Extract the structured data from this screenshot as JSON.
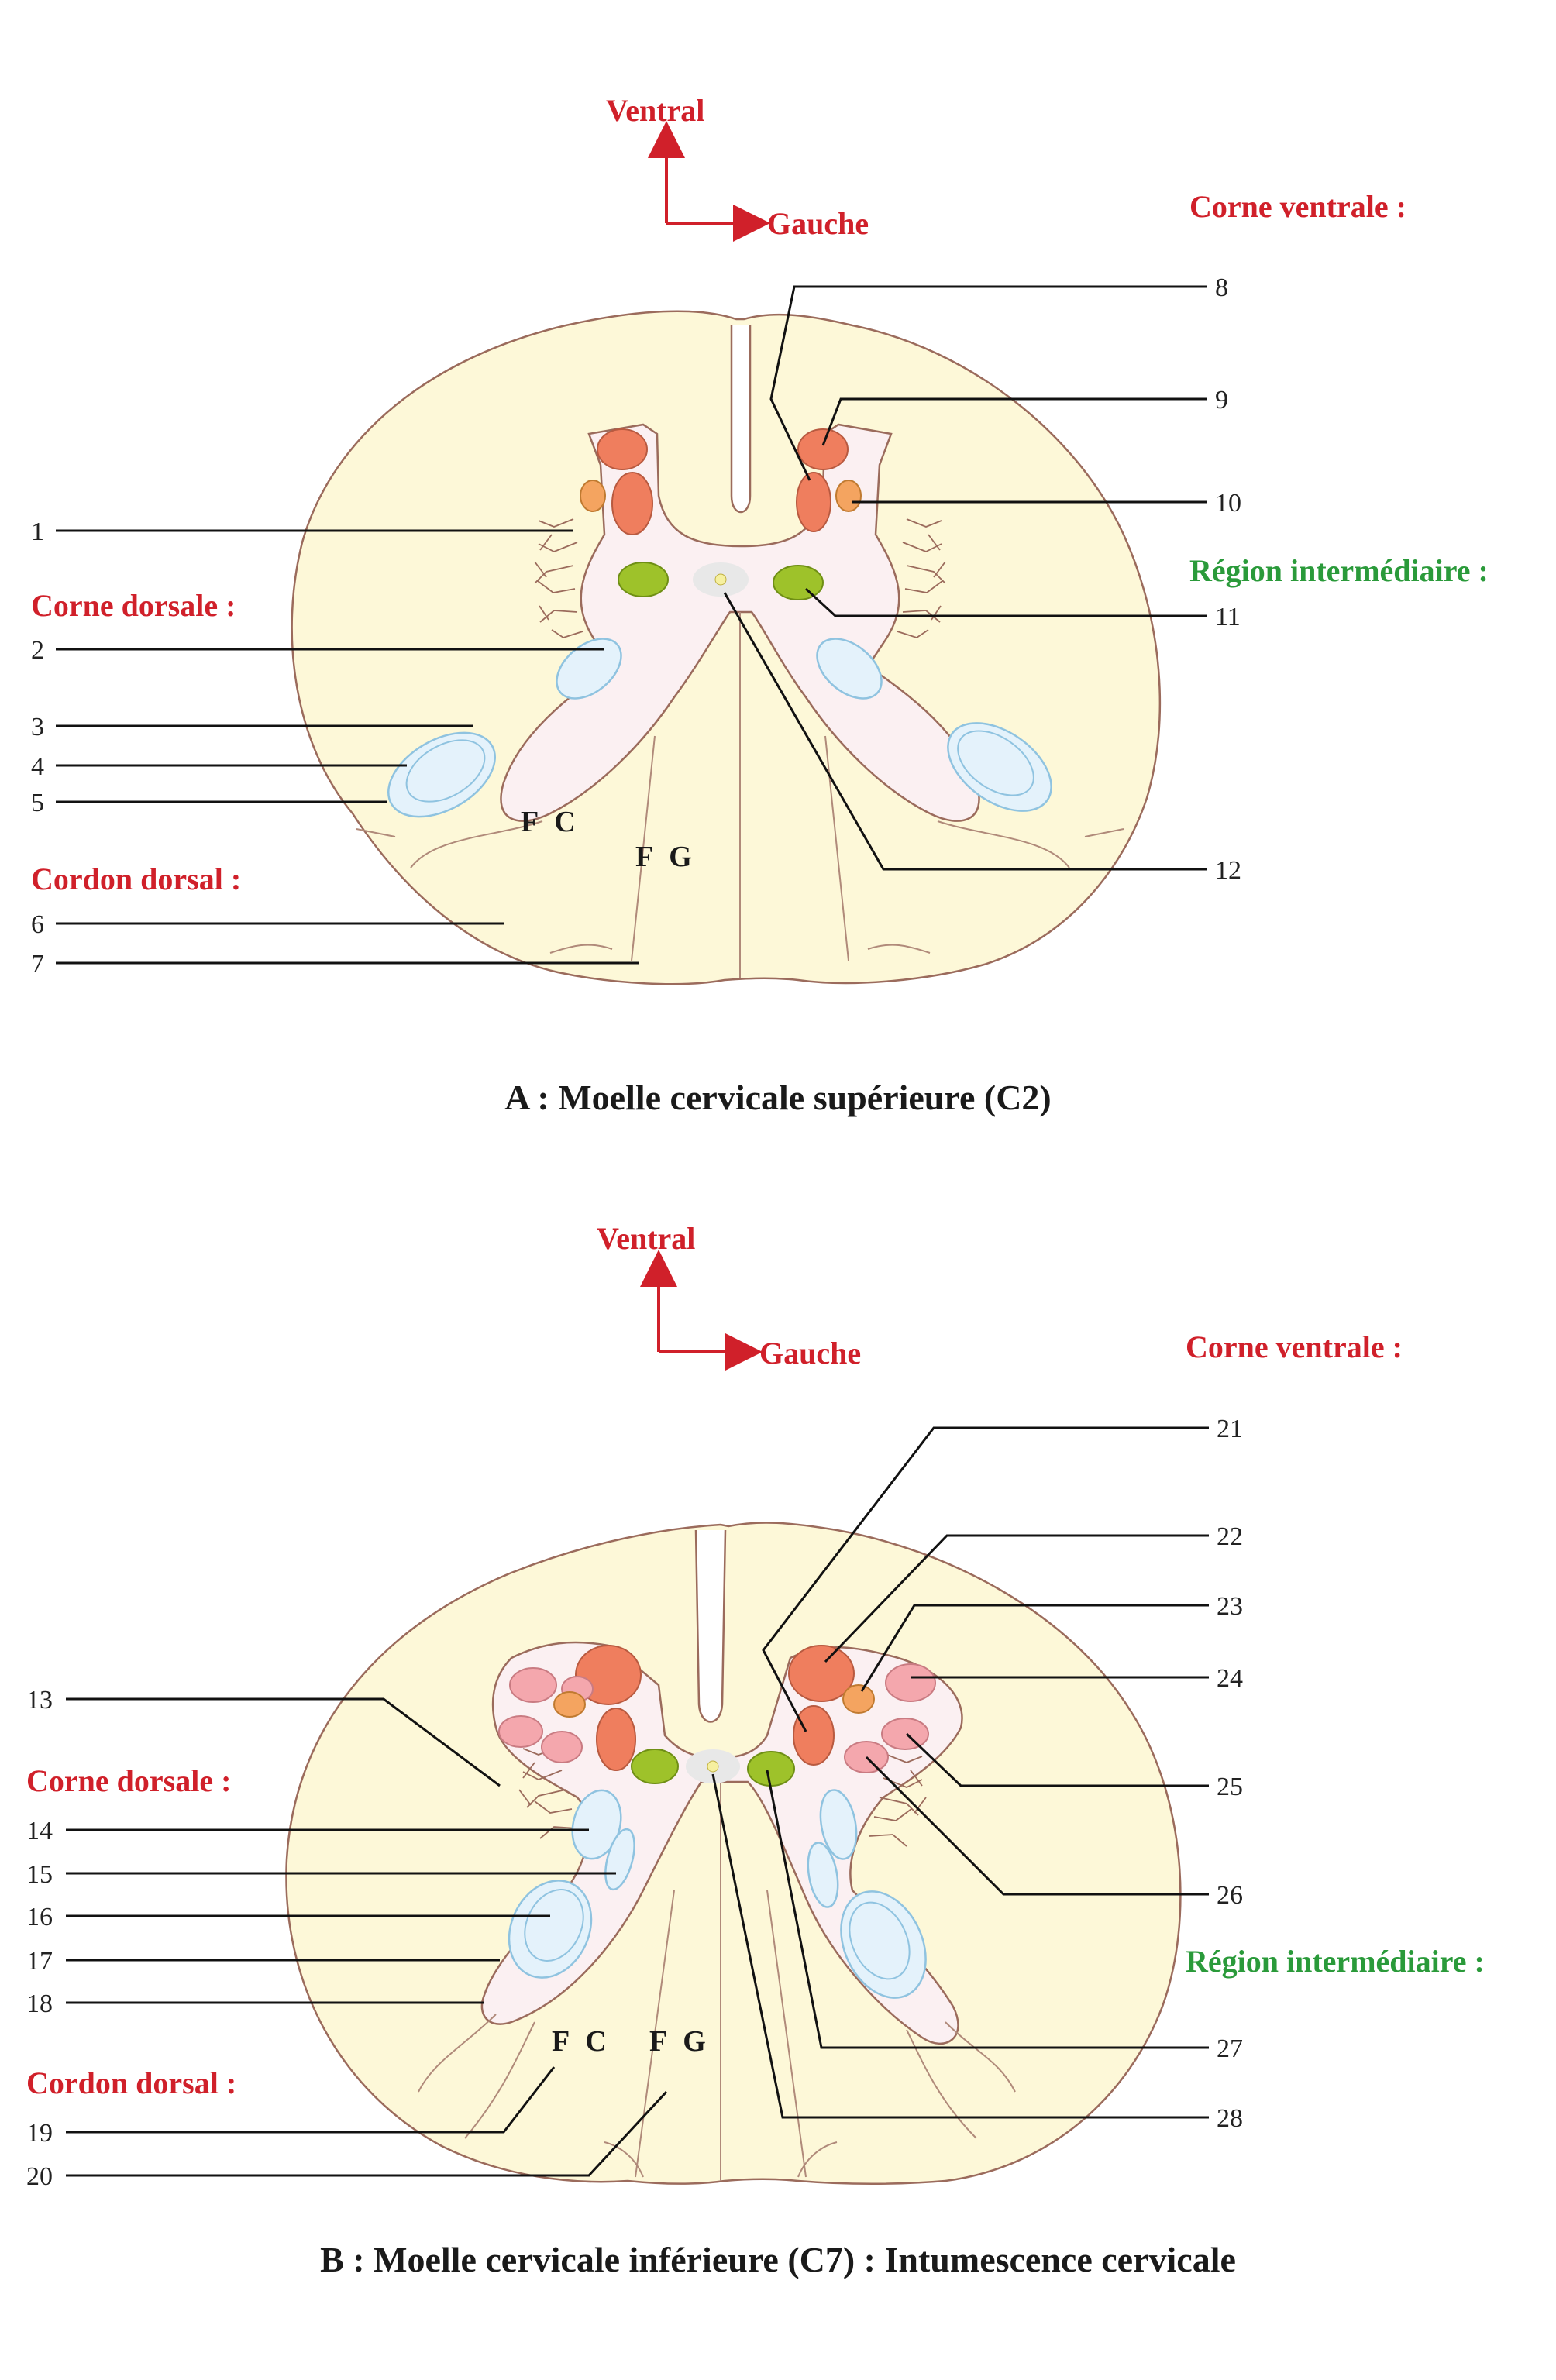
{
  "diagram_a": {
    "direction_ventral": "Ventral",
    "direction_left": "Gauche",
    "heading_ventral_horn": "Corne ventrale :",
    "heading_intermediate": "Région intermédiaire :",
    "heading_dorsal_horn": "Corne dorsale :",
    "heading_dorsal_cord": "Cordon dorsal :",
    "fasciculus_cuneatus": "F C",
    "fasciculus_gracilis": "F G",
    "caption": "A : Moelle cervicale supérieure (C2)",
    "labels": [
      "1",
      "2",
      "3",
      "4",
      "5",
      "6",
      "7",
      "8",
      "9",
      "10",
      "11",
      "12"
    ]
  },
  "diagram_b": {
    "direction_ventral": "Ventral",
    "direction_left": "Gauche",
    "heading_ventral_horn": "Corne ventrale :",
    "heading_intermediate": "Région intermédiaire :",
    "heading_dorsal_horn": "Corne dorsale :",
    "heading_dorsal_cord": "Cordon dorsal :",
    "fasciculus_cuneatus": "F C",
    "fasciculus_gracilis": "F G",
    "caption": "B : Moelle cervicale inférieure (C7) : Intumescence cervicale",
    "labels": [
      "13",
      "14",
      "15",
      "16",
      "17",
      "18",
      "19",
      "20",
      "21",
      "22",
      "23",
      "24",
      "25",
      "26",
      "27",
      "28"
    ]
  },
  "colors": {
    "white_matter": "#fdf8d8",
    "grey_matter": "#fbf0f2",
    "motor_nucleus": "#ef7e5e",
    "accessory_nucleus": "#f4a460",
    "pink_nucleus": "#f4a7ad",
    "dorsal_nucleus": "#9ec22a",
    "dorsal_horn_layers": "#e4f2fb",
    "heading_red": "#d0202a",
    "heading_green": "#2a9a3a"
  }
}
